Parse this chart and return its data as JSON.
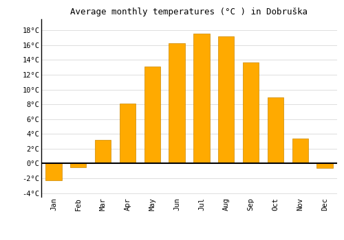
{
  "title": "Average monthly temperatures (°C ) in Dobruška",
  "months": [
    "Jan",
    "Feb",
    "Mar",
    "Apr",
    "May",
    "Jun",
    "Jul",
    "Aug",
    "Sep",
    "Oct",
    "Nov",
    "Dec"
  ],
  "values": [
    -2.3,
    -0.5,
    3.2,
    8.1,
    13.1,
    16.3,
    17.6,
    17.2,
    13.7,
    8.9,
    3.4,
    -0.6
  ],
  "bar_color": "#FFAA00",
  "bar_edge_color": "#CC8800",
  "background_color": "#FFFFFF",
  "grid_color": "#DDDDDD",
  "ylim": [
    -4.5,
    19.5
  ],
  "yticks": [
    -4,
    -2,
    0,
    2,
    4,
    6,
    8,
    10,
    12,
    14,
    16,
    18
  ],
  "zero_line_color": "#000000",
  "title_fontsize": 9,
  "bar_width": 0.65
}
